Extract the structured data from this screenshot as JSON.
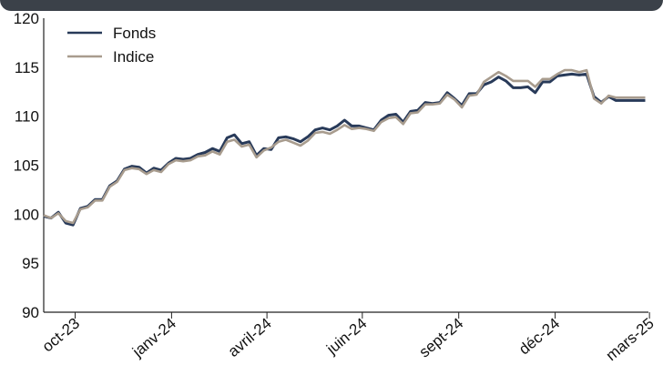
{
  "chart_data": {
    "type": "line",
    "title": "",
    "xlabel": "",
    "ylabel": "",
    "ylim": [
      90,
      120
    ],
    "yticks": [
      90,
      95,
      100,
      105,
      110,
      115,
      120
    ],
    "xlim": [
      "2023-09-01",
      "2025-03-31"
    ],
    "xticks": [
      {
        "label": "oct-23",
        "date": "2023-10-01"
      },
      {
        "label": "janv-24",
        "date": "2024-01-01"
      },
      {
        "label": "avril-24",
        "date": "2024-04-01"
      },
      {
        "label": "juin-24",
        "date": "2024-07-01"
      },
      {
        "label": "sept-24",
        "date": "2024-10-01"
      },
      {
        "label": "déc-24",
        "date": "2025-01-01"
      },
      {
        "label": "mars-25",
        "date": "2025-04-01"
      }
    ],
    "grid": false,
    "legend_position": "top-left",
    "x": [
      "2023-09-01",
      "2023-09-08",
      "2023-09-15",
      "2023-09-22",
      "2023-09-29",
      "2023-10-06",
      "2023-10-13",
      "2023-10-20",
      "2023-10-27",
      "2023-11-03",
      "2023-11-10",
      "2023-11-17",
      "2023-11-24",
      "2023-12-01",
      "2023-12-08",
      "2023-12-15",
      "2023-12-22",
      "2023-12-29",
      "2024-01-05",
      "2024-01-12",
      "2024-01-19",
      "2024-01-26",
      "2024-02-02",
      "2024-02-09",
      "2024-02-16",
      "2024-02-23",
      "2024-03-01",
      "2024-03-08",
      "2024-03-15",
      "2024-03-22",
      "2024-03-29",
      "2024-04-05",
      "2024-04-12",
      "2024-04-19",
      "2024-04-26",
      "2024-05-03",
      "2024-05-10",
      "2024-05-17",
      "2024-05-24",
      "2024-05-31",
      "2024-06-07",
      "2024-06-14",
      "2024-06-21",
      "2024-06-28",
      "2024-07-05",
      "2024-07-12",
      "2024-07-19",
      "2024-07-26",
      "2024-08-02",
      "2024-08-09",
      "2024-08-16",
      "2024-08-23",
      "2024-08-30",
      "2024-09-06",
      "2024-09-13",
      "2024-09-20",
      "2024-09-27",
      "2024-10-04",
      "2024-10-11",
      "2024-10-18",
      "2024-10-25",
      "2024-11-01",
      "2024-11-08",
      "2024-11-15",
      "2024-11-22",
      "2024-11-29",
      "2024-12-06",
      "2024-12-13",
      "2024-12-20",
      "2024-12-27",
      "2025-01-03",
      "2025-01-10",
      "2025-01-17",
      "2025-01-24",
      "2025-01-31",
      "2025-02-07",
      "2025-02-14",
      "2025-02-21",
      "2025-02-28",
      "2025-03-07",
      "2025-03-14",
      "2025-03-21",
      "2025-03-28"
    ],
    "series": [
      {
        "name": "Fonds",
        "color": "#283a59",
        "values": [
          99.8,
          99.6,
          100.2,
          99.1,
          98.9,
          100.6,
          100.8,
          101.5,
          101.5,
          102.9,
          103.4,
          104.6,
          104.9,
          104.8,
          104.2,
          104.7,
          104.5,
          105.2,
          105.7,
          105.6,
          105.7,
          106.1,
          106.3,
          106.7,
          106.4,
          107.8,
          108.1,
          107.2,
          107.4,
          106.0,
          106.7,
          106.6,
          107.8,
          107.9,
          107.7,
          107.4,
          107.9,
          108.6,
          108.8,
          108.6,
          109.0,
          109.6,
          109.0,
          109.0,
          108.8,
          108.6,
          109.6,
          110.1,
          110.2,
          109.4,
          110.5,
          110.6,
          111.4,
          111.3,
          111.4,
          112.4,
          111.8,
          111.1,
          112.3,
          112.3,
          113.2,
          113.5,
          114.0,
          113.6,
          112.9,
          112.9,
          113.0,
          112.4,
          113.5,
          113.5,
          114.1,
          114.2,
          114.3,
          114.2,
          114.3,
          112.0,
          111.4,
          112.0,
          111.6,
          111.6,
          111.6,
          111.6,
          111.6
        ]
      },
      {
        "name": "Indice",
        "color": "#a89c8e",
        "values": [
          99.9,
          99.6,
          100.1,
          99.3,
          99.1,
          100.5,
          100.7,
          101.4,
          101.4,
          102.8,
          103.3,
          104.5,
          104.7,
          104.6,
          104.1,
          104.5,
          104.3,
          105.1,
          105.5,
          105.4,
          105.5,
          105.9,
          106.0,
          106.4,
          106.1,
          107.4,
          107.6,
          106.9,
          107.1,
          105.8,
          106.5,
          106.8,
          107.4,
          107.6,
          107.3,
          107.0,
          107.5,
          108.3,
          108.4,
          108.2,
          108.6,
          109.1,
          108.7,
          108.8,
          108.7,
          108.5,
          109.4,
          109.8,
          109.9,
          109.2,
          110.3,
          110.4,
          111.2,
          111.2,
          111.3,
          112.2,
          111.7,
          110.9,
          112.1,
          112.2,
          113.5,
          114.0,
          114.5,
          114.1,
          113.6,
          113.6,
          113.6,
          113.0,
          113.8,
          113.8,
          114.3,
          114.7,
          114.7,
          114.5,
          114.7,
          111.8,
          111.3,
          112.1,
          111.9,
          111.9,
          111.9,
          111.9,
          111.9
        ]
      }
    ]
  }
}
